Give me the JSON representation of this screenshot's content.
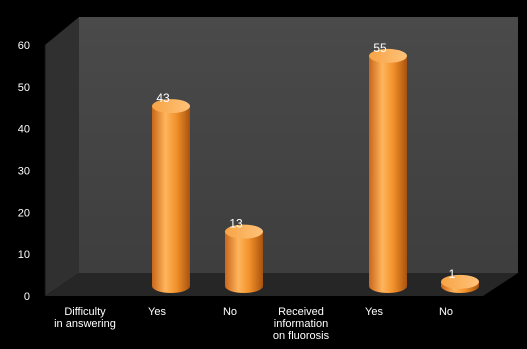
{
  "chart_data": {
    "type": "bar",
    "categories": [
      "Difficulty\nin answering",
      "Yes",
      "No",
      "Received\ninformation\non fluorosis",
      "Yes",
      "No"
    ],
    "values": [
      null,
      43,
      13,
      null,
      55,
      1
    ],
    "data_labels": [
      "",
      "43",
      "13",
      "",
      "55",
      "1"
    ],
    "ylim": [
      0,
      60
    ],
    "yticks": [
      "0",
      "10",
      "20",
      "30",
      "40",
      "50",
      "60"
    ],
    "title": "",
    "xlabel": "",
    "ylabel": "",
    "grid": false,
    "style": "3d-cylinder",
    "colors": {
      "bar": "#f0902a",
      "bar_light": "#ffc577",
      "bar_dark": "#b85a10",
      "wall": "#454545",
      "floor": "#2a2a2a",
      "side_wall": "#2f2f2f",
      "background": "#000000",
      "text": "#ffffff"
    }
  }
}
